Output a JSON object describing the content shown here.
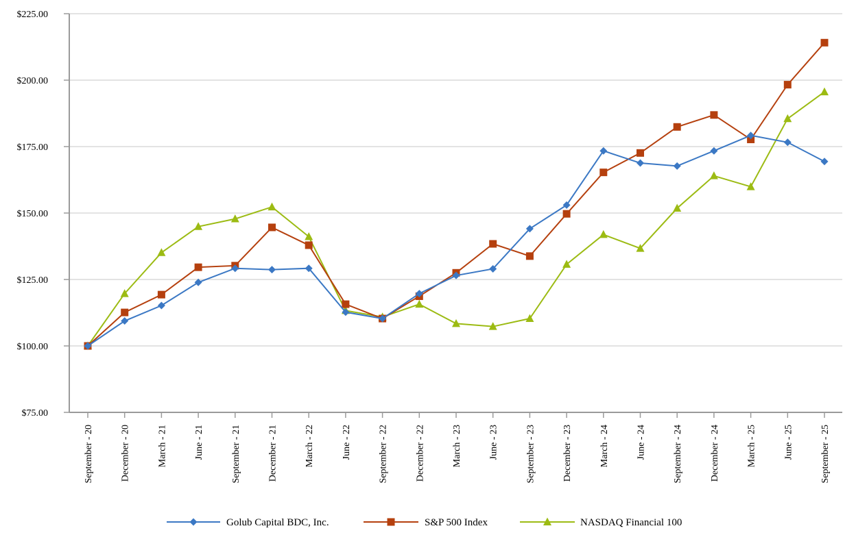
{
  "chart_data": {
    "type": "line",
    "title": "",
    "xlabel": "",
    "ylabel": "",
    "ylim": [
      75,
      225
    ],
    "yticks": [
      75,
      100,
      125,
      150,
      175,
      200,
      225
    ],
    "ytick_labels": [
      "$75.00",
      "$100.00",
      "$125.00",
      "$150.00",
      "$175.00",
      "$200.00",
      "$225.00"
    ],
    "grid": true,
    "legend_position": "bottom",
    "categories": [
      "September - 20",
      "December - 20",
      "March - 21",
      "June - 21",
      "September - 21",
      "December - 21",
      "March - 22",
      "June - 22",
      "September - 22",
      "December - 22",
      "March - 23",
      "June - 23",
      "September - 23",
      "December - 23",
      "March - 24",
      "June - 24",
      "September - 24",
      "December - 24",
      "March - 25",
      "June - 25",
      "September - 25"
    ],
    "series": [
      {
        "name": "Golub Capital BDC, Inc.",
        "color": "#3b78c4",
        "marker": "diamond",
        "values": [
          100.0,
          109.4,
          115.2,
          123.9,
          129.2,
          128.7,
          129.2,
          112.7,
          110.3,
          119.7,
          126.5,
          129.0,
          144.1,
          153.0,
          173.4,
          168.8,
          167.7,
          173.4,
          179.2,
          176.6,
          169.4
        ]
      },
      {
        "name": "S&P 500 Index",
        "color": "#b5400e",
        "marker": "square",
        "values": [
          100.0,
          112.6,
          119.3,
          129.6,
          130.2,
          144.6,
          137.9,
          115.7,
          110.3,
          118.7,
          127.5,
          138.4,
          133.8,
          149.7,
          165.3,
          172.6,
          182.4,
          186.9,
          177.7,
          198.3,
          214.1
        ]
      },
      {
        "name": "NASDAQ Financial 100",
        "color": "#9cbb13",
        "marker": "triangle",
        "values": [
          100.0,
          119.7,
          135.1,
          144.9,
          147.8,
          152.3,
          141.1,
          113.3,
          110.9,
          115.7,
          108.4,
          107.3,
          110.3,
          130.7,
          141.9,
          136.7,
          151.8,
          164.0,
          159.9,
          185.5,
          195.6
        ]
      }
    ]
  }
}
